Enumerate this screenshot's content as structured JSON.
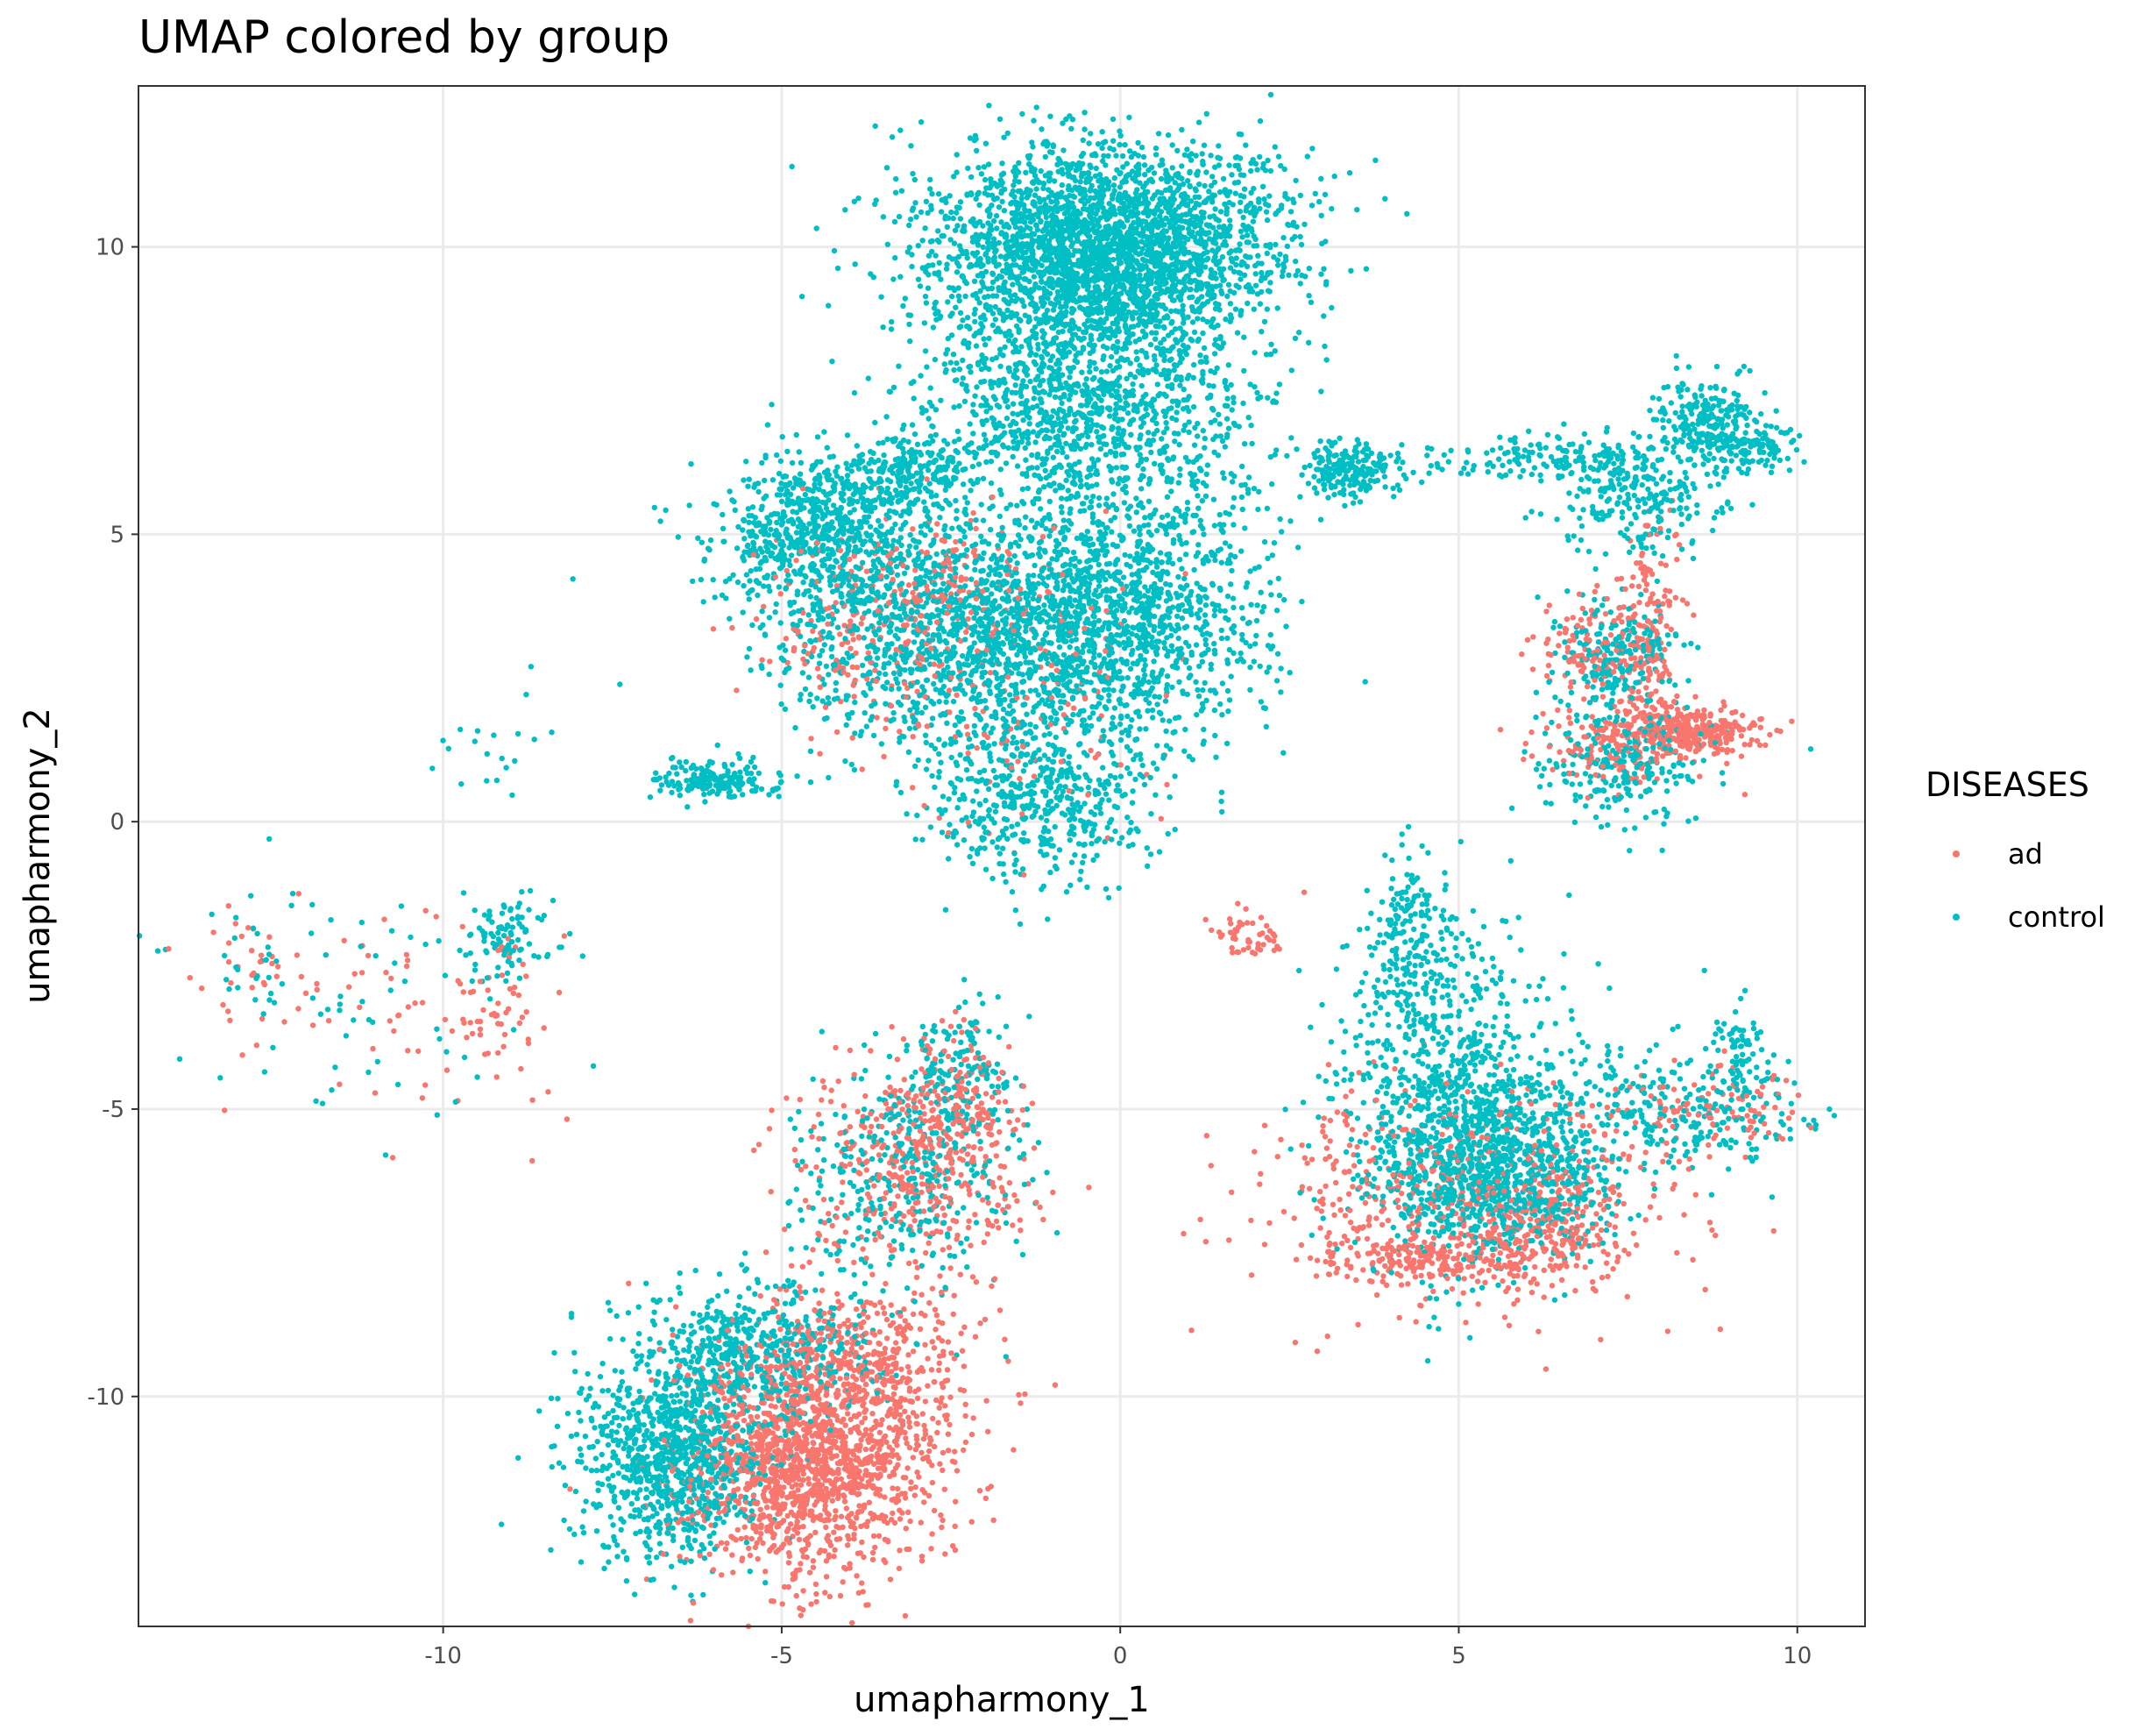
{
  "chart_data": {
    "type": "scatter",
    "title": "UMAP colored by group",
    "xlabel": "umapharmony_1",
    "ylabel": "umapharmony_2",
    "xlim": [
      -14.5,
      11
    ],
    "ylim": [
      -14,
      12.8
    ],
    "xticks": [
      -10,
      -5,
      0,
      5,
      10
    ],
    "yticks": [
      -10,
      -5,
      0,
      5,
      10
    ],
    "xtick_labels": [
      "-10",
      "-5",
      "0",
      "5",
      "10"
    ],
    "ytick_labels": [
      "-10",
      "-5",
      "0",
      "5",
      "10"
    ],
    "grid": true,
    "legend": {
      "title": "DISEASES",
      "placement": "right",
      "entries": [
        {
          "label": "ad",
          "color": "#F8766D"
        },
        {
          "label": "control",
          "color": "#00BFC4"
        }
      ]
    },
    "series": [
      {
        "name": "ad",
        "color": "#F8766D",
        "clusters": [
          {
            "cx": -4.6,
            "cy": -11.2,
            "sx": 0.9,
            "sy": 1.0,
            "n": 1400
          },
          {
            "cx": -3.9,
            "cy": -9.6,
            "sx": 0.9,
            "sy": 0.8,
            "n": 500
          },
          {
            "cx": -3.0,
            "cy": -6.1,
            "sx": 0.9,
            "sy": 0.9,
            "n": 420
          },
          {
            "cx": -2.3,
            "cy": -4.8,
            "sx": 0.4,
            "sy": 0.6,
            "n": 120
          },
          {
            "cx": 5.0,
            "cy": -6.5,
            "sx": 1.6,
            "sy": 1.0,
            "n": 520
          },
          {
            "cx": 4.6,
            "cy": -7.6,
            "sx": 0.9,
            "sy": 0.2,
            "n": 200
          },
          {
            "cx": 6.4,
            "cy": -7.0,
            "sx": 0.5,
            "sy": 0.5,
            "n": 180
          },
          {
            "cx": 8.7,
            "cy": -5.0,
            "sx": 0.8,
            "sy": 0.4,
            "n": 100
          },
          {
            "cx": 8.4,
            "cy": 1.6,
            "sx": 0.5,
            "sy": 0.2,
            "n": 320
          },
          {
            "cx": 7.4,
            "cy": 1.3,
            "sx": 0.6,
            "sy": 0.35,
            "n": 150
          },
          {
            "cx": 7.8,
            "cy": 3.4,
            "sx": 0.2,
            "sy": 0.9,
            "n": 150
          },
          {
            "cx": 7.0,
            "cy": 3.0,
            "sx": 0.5,
            "sy": 0.5,
            "n": 130
          },
          {
            "cx": -3.7,
            "cy": 3.5,
            "sx": 0.8,
            "sy": 0.9,
            "n": 230
          },
          {
            "cx": -1.3,
            "cy": 2.2,
            "sx": 1.0,
            "sy": 1.2,
            "n": 140
          },
          {
            "cx": -2.4,
            "cy": 4.3,
            "sx": 0.5,
            "sy": 0.5,
            "n": 80
          },
          {
            "cx": 1.9,
            "cy": -2.0,
            "sx": 0.25,
            "sy": 0.25,
            "n": 50
          },
          {
            "cx": -11.0,
            "cy": -3.2,
            "sx": 1.5,
            "sy": 1.0,
            "n": 70
          },
          {
            "cx": -9.2,
            "cy": -3.2,
            "sx": 0.4,
            "sy": 0.7,
            "n": 45
          },
          {
            "cx": -12.8,
            "cy": -2.6,
            "sx": 0.3,
            "sy": 0.5,
            "n": 25
          }
        ]
      },
      {
        "name": "control",
        "color": "#00BFC4",
        "clusters": [
          {
            "cx": -0.2,
            "cy": 10.0,
            "sx": 1.3,
            "sy": 0.9,
            "n": 2800
          },
          {
            "cx": -0.5,
            "cy": 7.3,
            "sx": 1.2,
            "sy": 1.2,
            "n": 1300
          },
          {
            "cx": -2.0,
            "cy": 3.2,
            "sx": 1.5,
            "sy": 1.1,
            "n": 1600
          },
          {
            "cx": -4.5,
            "cy": 5.0,
            "sx": 0.7,
            "sy": 0.7,
            "n": 700
          },
          {
            "cx": -3.2,
            "cy": 6.0,
            "sx": 0.5,
            "sy": 0.4,
            "n": 250
          },
          {
            "cx": -0.2,
            "cy": 3.5,
            "sx": 1.0,
            "sy": 1.2,
            "n": 700
          },
          {
            "cx": -1.2,
            "cy": 0.3,
            "sx": 0.8,
            "sy": 0.7,
            "n": 450
          },
          {
            "cx": 0.8,
            "cy": 4.0,
            "sx": 0.9,
            "sy": 1.2,
            "n": 300
          },
          {
            "cx": 3.5,
            "cy": 6.1,
            "sx": 0.35,
            "sy": 0.25,
            "n": 200
          },
          {
            "cx": -6.0,
            "cy": 0.7,
            "sx": 0.45,
            "sy": 0.15,
            "n": 180
          },
          {
            "cx": -6.6,
            "cy": -11.0,
            "sx": 0.7,
            "sy": 0.9,
            "n": 1000
          },
          {
            "cx": -5.4,
            "cy": -9.2,
            "sx": 0.9,
            "sy": 0.6,
            "n": 500
          },
          {
            "cx": -3.1,
            "cy": -6.2,
            "sx": 0.9,
            "sy": 0.9,
            "n": 350
          },
          {
            "cx": -2.3,
            "cy": -4.3,
            "sx": 0.4,
            "sy": 0.6,
            "n": 150
          },
          {
            "cx": 4.8,
            "cy": -4.8,
            "sx": 0.8,
            "sy": 1.4,
            "n": 800
          },
          {
            "cx": 5.7,
            "cy": -6.0,
            "sx": 0.8,
            "sy": 0.8,
            "n": 800
          },
          {
            "cx": 4.3,
            "cy": -2.2,
            "sx": 0.3,
            "sy": 0.8,
            "n": 180
          },
          {
            "cx": 8.4,
            "cy": -5.0,
            "sx": 0.9,
            "sy": 0.5,
            "n": 250
          },
          {
            "cx": 9.1,
            "cy": -4.0,
            "sx": 0.2,
            "sy": 0.5,
            "n": 70
          },
          {
            "cx": 7.4,
            "cy": 1.0,
            "sx": 0.6,
            "sy": 0.5,
            "n": 250
          },
          {
            "cx": 7.3,
            "cy": 2.9,
            "sx": 0.5,
            "sy": 0.5,
            "n": 220
          },
          {
            "cx": 7.7,
            "cy": 5.6,
            "sx": 0.6,
            "sy": 0.5,
            "n": 250
          },
          {
            "cx": 8.7,
            "cy": 7.0,
            "sx": 0.4,
            "sy": 0.4,
            "n": 220
          },
          {
            "cx": 6.4,
            "cy": 6.3,
            "sx": 0.9,
            "sy": 0.2,
            "n": 160
          },
          {
            "cx": 9.3,
            "cy": 6.5,
            "sx": 0.4,
            "sy": 0.2,
            "n": 100
          },
          {
            "cx": -10.9,
            "cy": -3.0,
            "sx": 1.5,
            "sy": 1.0,
            "n": 70
          },
          {
            "cx": -9.1,
            "cy": -1.9,
            "sx": 0.35,
            "sy": 0.35,
            "n": 90
          },
          {
            "cx": -9.3,
            "cy": 1.2,
            "sx": 0.6,
            "sy": 0.7,
            "n": 20
          },
          {
            "cx": -12.8,
            "cy": -2.6,
            "sx": 0.3,
            "sy": 0.5,
            "n": 20
          }
        ]
      }
    ]
  }
}
